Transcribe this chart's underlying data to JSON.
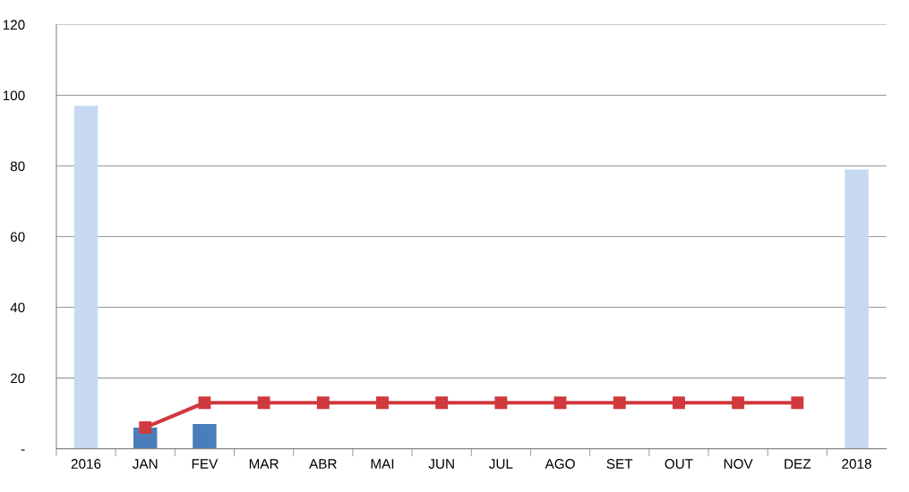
{
  "chart_data": {
    "type": "bar",
    "categories": [
      "2016",
      "JAN",
      "FEV",
      "MAR",
      "ABR",
      "MAI",
      "JUN",
      "JUL",
      "AGO",
      "SET",
      "OUT",
      "NOV",
      "DEZ",
      "2018"
    ],
    "series": [
      {
        "colors": [
          "#c6d9f1",
          "#4a7ebb",
          "#4a7ebb",
          "#4a7ebb",
          "#4a7ebb",
          "#4a7ebb",
          "#4a7ebb",
          "#4a7ebb",
          "#4a7ebb",
          "#4a7ebb",
          "#4a7ebb",
          "#4a7ebb",
          "#4a7ebb",
          "#c6d9f1"
        ],
        "values": [
          97,
          6,
          7,
          null,
          null,
          null,
          null,
          null,
          null,
          null,
          null,
          null,
          null,
          79
        ]
      },
      {
        "type": "line",
        "color": "#d0393d",
        "marker": "square",
        "values": [
          null,
          6,
          13,
          13,
          13,
          13,
          13,
          13,
          13,
          13,
          13,
          13,
          13,
          null
        ]
      }
    ],
    "ylim": [
      0,
      120
    ],
    "yticks": [
      {
        "value": 0,
        "label": "-"
      },
      20,
      40,
      60,
      80,
      100,
      120
    ],
    "grid": "y",
    "legend": false
  }
}
